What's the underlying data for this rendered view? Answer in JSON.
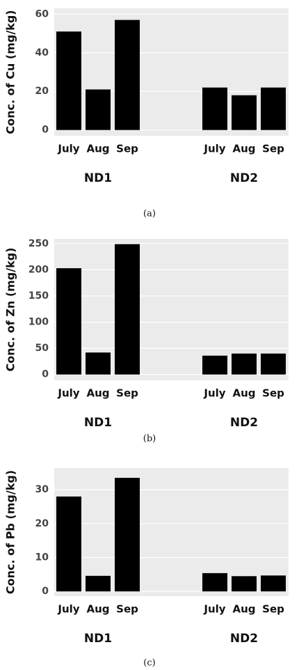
{
  "chart_data": [
    {
      "type": "bar",
      "caption": "(a)",
      "y_label": "Conc. of Cu (mg/kg)",
      "categories": [
        "July",
        "Aug",
        "Sep",
        "July",
        "Aug",
        "Sep"
      ],
      "groups": [
        "ND1",
        "ND2"
      ],
      "values": [
        51,
        21,
        57,
        22,
        18,
        22
      ],
      "color": "#000000",
      "ylim": [
        -3,
        63
      ],
      "yticks": [
        0,
        20,
        40,
        60
      ],
      "grid": true
    },
    {
      "type": "bar",
      "caption": "(b)",
      "y_label": "Conc. of Zn (mg/kg)",
      "categories": [
        "July",
        "Aug",
        "Sep",
        "July",
        "Aug",
        "Sep"
      ],
      "groups": [
        "ND1",
        "ND2"
      ],
      "values": [
        203,
        42,
        249,
        36,
        40,
        40
      ],
      "color": "#000000",
      "ylim": [
        -11,
        259
      ],
      "yticks": [
        0,
        50,
        100,
        150,
        200,
        250
      ],
      "grid": true
    },
    {
      "type": "bar",
      "caption": "(c)",
      "y_label": "Conc. of Pb (mg/kg)",
      "categories": [
        "July",
        "Aug",
        "Sep",
        "July",
        "Aug",
        "Sep"
      ],
      "groups": [
        "ND1",
        "ND2"
      ],
      "values": [
        28,
        4.6,
        33.5,
        5.4,
        4.5,
        4.7
      ],
      "color": "#000000",
      "ylim": [
        -1.4,
        36.4
      ],
      "yticks": [
        0,
        10,
        20,
        30
      ],
      "grid": true
    }
  ]
}
